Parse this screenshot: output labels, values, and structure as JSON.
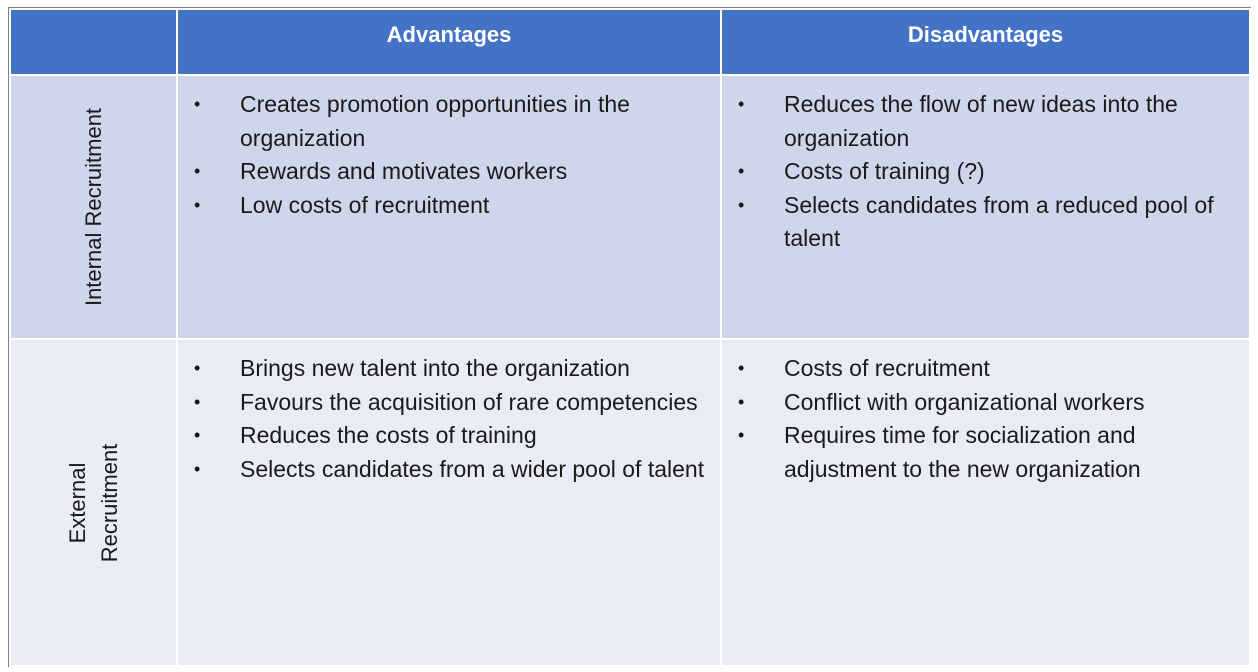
{
  "table": {
    "corner": "",
    "headers": {
      "advantages": "Advantages",
      "disadvantages": "Disadvantages"
    },
    "rows": [
      {
        "label": "Internal Recruitment",
        "advantages": [
          "Creates promotion opportunities in the organization",
          "Rewards and motivates workers",
          "Low costs of recruitment"
        ],
        "disadvantages": [
          "Reduces the flow of new ideas into the organization",
          "Costs of training (?)",
          "Selects candidates from a reduced pool of talent"
        ]
      },
      {
        "label_line1": "External",
        "label_line2": "Recruitment",
        "advantages": [
          "Brings new talent into the organization",
          "Favours the acquisition of rare competencies",
          "Reduces the costs of training",
          "Selects candidates from a wider pool of talent"
        ],
        "disadvantages": [
          "Costs of recruitment",
          "Conflict with organizational workers",
          "Requires time for socialization and adjustment to the new organization"
        ]
      }
    ]
  },
  "colors": {
    "header_bg": "#4472c4",
    "row1_bg": "#cfd5ea",
    "row2_bg": "#e9ebf5",
    "border": "#ffffff"
  },
  "bullet_glyph": "•"
}
